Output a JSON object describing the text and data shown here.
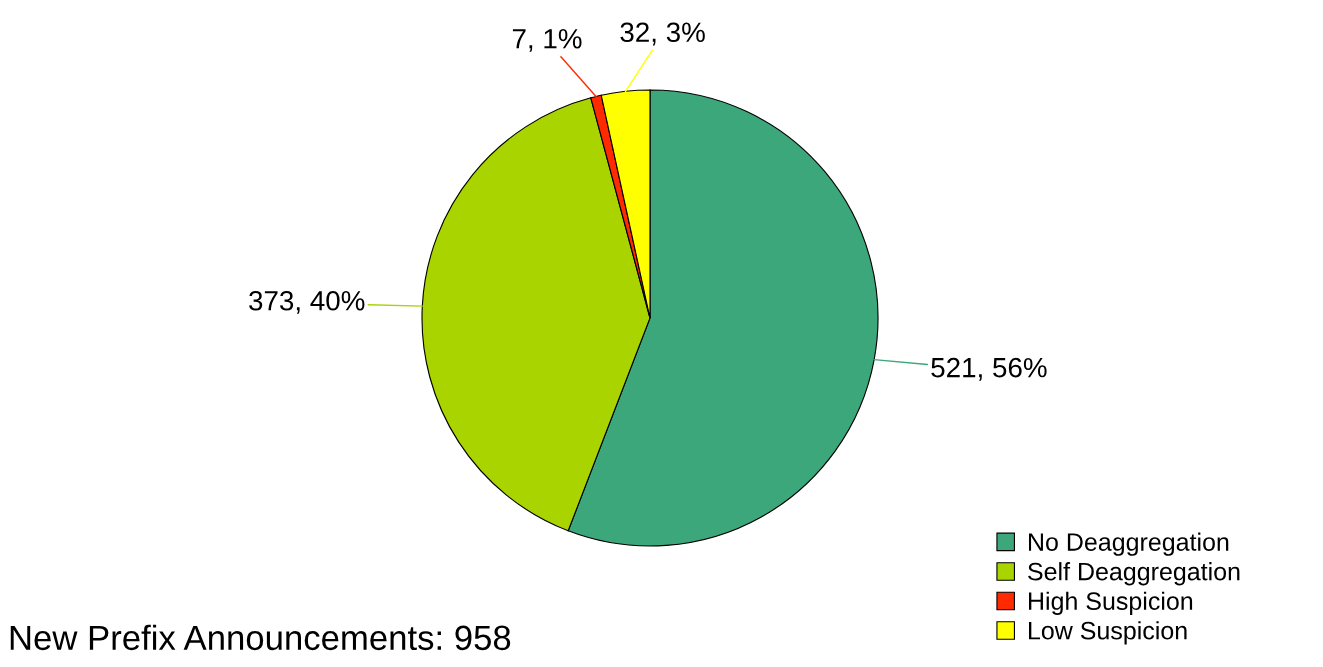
{
  "chart_data": {
    "type": "pie",
    "title": "New Prefix Announcements: 958",
    "categories": [
      "No Deaggregation",
      "Self Deaggregation",
      "High Suspicion",
      "Low Suspicion"
    ],
    "values": [
      521,
      373,
      7,
      32
    ],
    "colors": [
      "#3ca77b",
      "#a9d400",
      "#ff2a00",
      "#ffff00"
    ],
    "value_labels": [
      "521, 56%",
      "373, 40%",
      "7, 1%",
      "32, 3%"
    ],
    "legend": "bottom right"
  }
}
